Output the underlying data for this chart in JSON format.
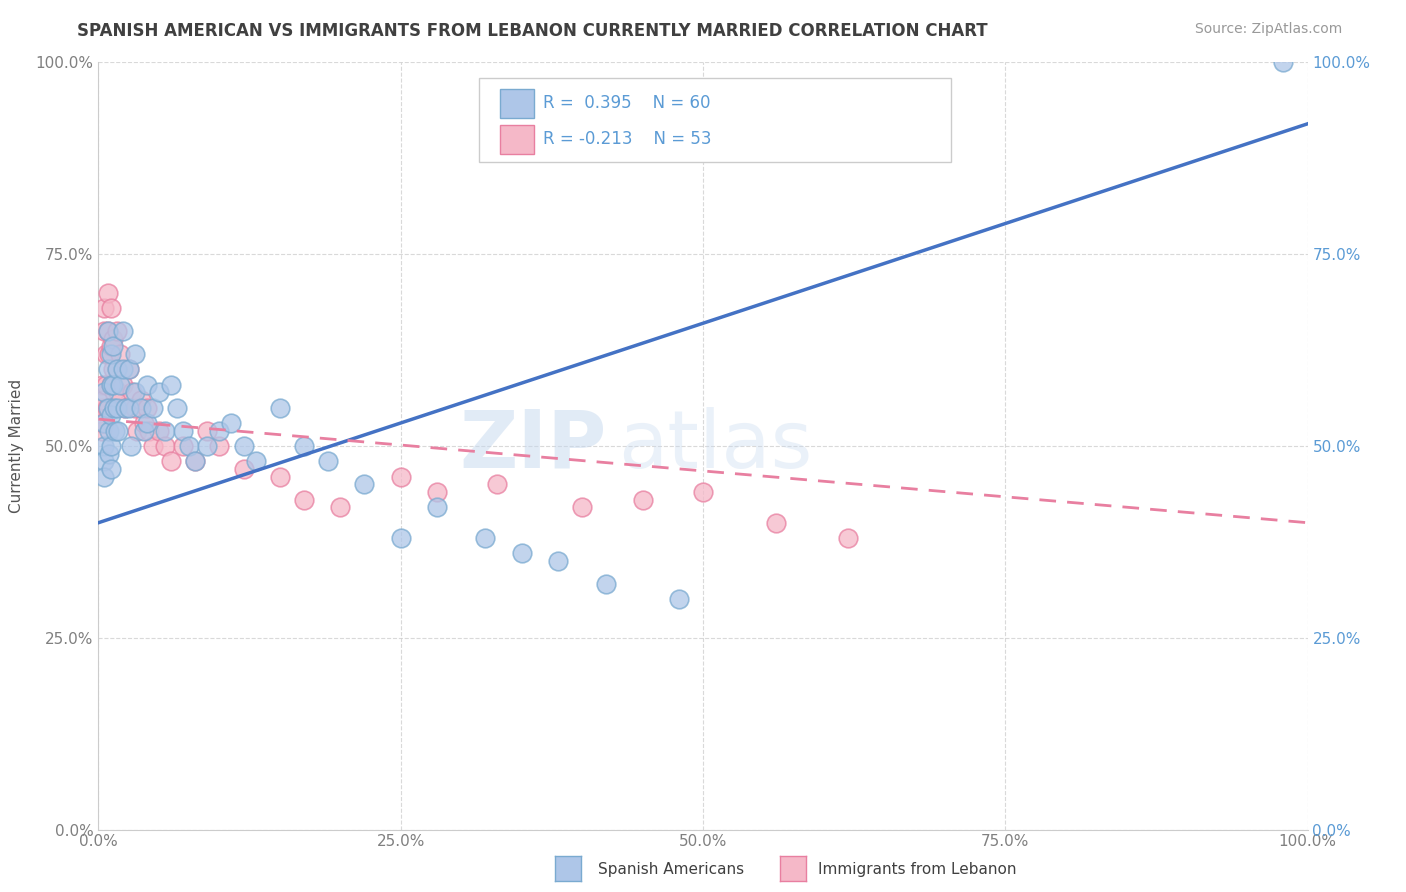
{
  "title": "SPANISH AMERICAN VS IMMIGRANTS FROM LEBANON CURRENTLY MARRIED CORRELATION CHART",
  "source": "Source: ZipAtlas.com",
  "ylabel": "Currently Married",
  "x_ticks": [
    0.0,
    0.25,
    0.5,
    0.75,
    1.0
  ],
  "x_tick_labels": [
    "0.0%",
    "25.0%",
    "50.0%",
    "75.0%",
    "100.0%"
  ],
  "y_ticks": [
    0.0,
    0.25,
    0.5,
    0.75,
    1.0
  ],
  "y_tick_labels": [
    "0.0%",
    "25.0%",
    "50.0%",
    "75.0%",
    "100.0%"
  ],
  "right_y_tick_labels": [
    "0.0%",
    "25.0%",
    "50.0%",
    "75.0%",
    "100.0%"
  ],
  "legend_entries": [
    {
      "label": "Spanish Americans",
      "color": "#aec6e8",
      "R": 0.395,
      "N": 60
    },
    {
      "label": "Immigrants from Lebanon",
      "color": "#f5b8c8",
      "R": -0.213,
      "N": 53
    }
  ],
  "blue_line_color": "#4472c4",
  "pink_line_color": "#e87fa0",
  "watermark_zip": "ZIP",
  "watermark_atlas": "atlas",
  "background_color": "#ffffff",
  "grid_color": "#d0d0d0",
  "blue_scatter_color": "#aec6e8",
  "pink_scatter_color": "#f5b8c8",
  "blue_scatter_edge": "#7aaad0",
  "pink_scatter_edge": "#e87fa0",
  "title_color": "#404040",
  "axis_color": "#808080",
  "right_axis_color": "#5b9bd5",
  "blue_line_slope": 0.52,
  "blue_line_intercept": 0.4,
  "pink_line_slope": -0.135,
  "pink_line_intercept": 0.535,
  "blue_points_x": [
    0.005,
    0.005,
    0.005,
    0.005,
    0.005,
    0.008,
    0.008,
    0.008,
    0.009,
    0.009,
    0.01,
    0.01,
    0.01,
    0.01,
    0.01,
    0.012,
    0.012,
    0.013,
    0.014,
    0.015,
    0.015,
    0.016,
    0.018,
    0.02,
    0.02,
    0.022,
    0.025,
    0.025,
    0.027,
    0.03,
    0.03,
    0.035,
    0.038,
    0.04,
    0.04,
    0.045,
    0.05,
    0.055,
    0.06,
    0.065,
    0.07,
    0.075,
    0.08,
    0.09,
    0.1,
    0.11,
    0.12,
    0.13,
    0.15,
    0.17,
    0.19,
    0.22,
    0.25,
    0.28,
    0.32,
    0.35,
    0.38,
    0.42,
    0.48,
    0.98
  ],
  "blue_points_y": [
    0.57,
    0.53,
    0.5,
    0.48,
    0.46,
    0.65,
    0.6,
    0.55,
    0.52,
    0.49,
    0.62,
    0.58,
    0.54,
    0.5,
    0.47,
    0.63,
    0.58,
    0.55,
    0.52,
    0.6,
    0.55,
    0.52,
    0.58,
    0.65,
    0.6,
    0.55,
    0.6,
    0.55,
    0.5,
    0.62,
    0.57,
    0.55,
    0.52,
    0.58,
    0.53,
    0.55,
    0.57,
    0.52,
    0.58,
    0.55,
    0.52,
    0.5,
    0.48,
    0.5,
    0.52,
    0.53,
    0.5,
    0.48,
    0.55,
    0.5,
    0.48,
    0.45,
    0.38,
    0.42,
    0.38,
    0.36,
    0.35,
    0.32,
    0.3,
    1.0
  ],
  "pink_points_x": [
    0.003,
    0.003,
    0.003,
    0.004,
    0.004,
    0.005,
    0.005,
    0.006,
    0.006,
    0.007,
    0.008,
    0.008,
    0.009,
    0.01,
    0.01,
    0.01,
    0.012,
    0.012,
    0.013,
    0.015,
    0.015,
    0.016,
    0.018,
    0.02,
    0.022,
    0.025,
    0.028,
    0.03,
    0.032,
    0.035,
    0.038,
    0.04,
    0.042,
    0.045,
    0.05,
    0.055,
    0.06,
    0.07,
    0.08,
    0.09,
    0.1,
    0.12,
    0.15,
    0.17,
    0.2,
    0.25,
    0.28,
    0.33,
    0.4,
    0.45,
    0.5,
    0.56,
    0.62
  ],
  "pink_points_y": [
    0.58,
    0.55,
    0.52,
    0.56,
    0.53,
    0.68,
    0.65,
    0.62,
    0.58,
    0.55,
    0.7,
    0.65,
    0.62,
    0.68,
    0.63,
    0.58,
    0.64,
    0.6,
    0.57,
    0.65,
    0.6,
    0.57,
    0.62,
    0.58,
    0.55,
    0.6,
    0.57,
    0.55,
    0.52,
    0.56,
    0.53,
    0.55,
    0.52,
    0.5,
    0.52,
    0.5,
    0.48,
    0.5,
    0.48,
    0.52,
    0.5,
    0.47,
    0.46,
    0.43,
    0.42,
    0.46,
    0.44,
    0.45,
    0.42,
    0.43,
    0.44,
    0.4,
    0.38
  ]
}
